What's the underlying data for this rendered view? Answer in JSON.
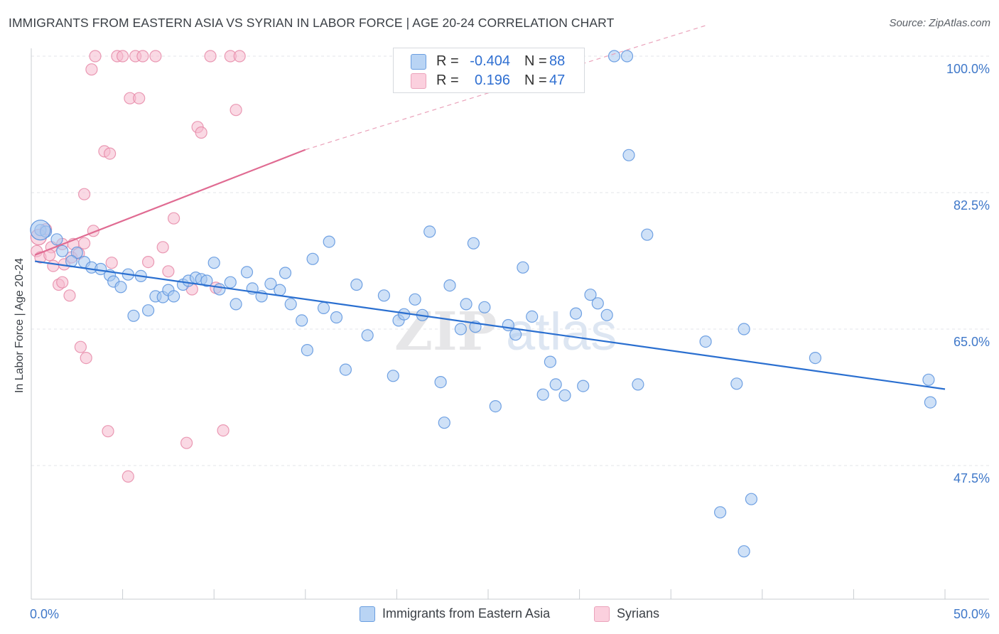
{
  "title": "IMMIGRANTS FROM EASTERN ASIA VS SYRIAN IN LABOR FORCE | AGE 20-24 CORRELATION CHART",
  "source": "Source: ZipAtlas.com",
  "watermark": {
    "zip": "ZIP",
    "atlas": "atlas"
  },
  "legend_stats": [
    {
      "r_label": "R =",
      "r_value": "-0.404",
      "n_label": "N =",
      "n_value": "88"
    },
    {
      "r_label": "R =",
      "r_value": "0.196",
      "n_label": "N =",
      "n_value": "47"
    }
  ],
  "colors": {
    "blue_fill": "#a8c8f0",
    "blue_stroke": "#5b93de",
    "blue_line": "#2a6fd0",
    "pink_fill": "#f6b9cd",
    "pink_stroke": "#e68aa8",
    "pink_line": "#e06b92",
    "tick_label": "#3f78c9",
    "grid": "#e3e6ea"
  },
  "chart_data": {
    "type": "scatter",
    "title": "IMMIGRANTS FROM EASTERN ASIA VS SYRIAN IN LABOR FORCE | AGE 20-24 CORRELATION CHART",
    "xlabel": "",
    "ylabel": "In Labor Force | Age 20-24",
    "xlim": [
      0,
      50
    ],
    "ylim": [
      30,
      101
    ],
    "x_tick_labels": [
      "0.0%",
      "50.0%"
    ],
    "y_ticks": [
      100,
      82.5,
      65,
      47.5
    ],
    "y_tick_labels": [
      "100.0%",
      "82.5%",
      "65.0%",
      "47.5%"
    ],
    "grid": true,
    "legend_position": "bottom",
    "series": [
      {
        "name": "Immigrants from Eastern Asia",
        "color": "#a8c8f0",
        "trend": {
          "x": [
            0.2,
            50
          ],
          "y": [
            73.7,
            57.3
          ],
          "dashed_to": null
        },
        "points": [
          [
            0.5,
            77.7
          ],
          [
            0.8,
            77.5
          ],
          [
            1.4,
            76.5
          ],
          [
            1.7,
            75
          ],
          [
            2.5,
            74.8
          ],
          [
            2.2,
            73.7
          ],
          [
            2.9,
            73.6
          ],
          [
            3.3,
            72.9
          ],
          [
            3.8,
            72.7
          ],
          [
            4.3,
            71.9
          ],
          [
            4.5,
            71.1
          ],
          [
            4.9,
            70.4
          ],
          [
            5.3,
            72
          ],
          [
            5.6,
            66.7
          ],
          [
            6.0,
            71.8
          ],
          [
            6.4,
            67.4
          ],
          [
            6.8,
            69.2
          ],
          [
            7.2,
            69.1
          ],
          [
            7.5,
            70
          ],
          [
            7.8,
            69.2
          ],
          [
            8.3,
            70.7
          ],
          [
            8.6,
            71.2
          ],
          [
            9.0,
            71.6
          ],
          [
            9.3,
            71.4
          ],
          [
            9.6,
            71.2
          ],
          [
            10.0,
            73.5
          ],
          [
            10.3,
            70.1
          ],
          [
            10.9,
            71
          ],
          [
            11.2,
            68.2
          ],
          [
            11.8,
            72.3
          ],
          [
            12.1,
            70.2
          ],
          [
            12.6,
            69.2
          ],
          [
            13.1,
            70.8
          ],
          [
            13.6,
            70
          ],
          [
            13.9,
            72.2
          ],
          [
            14.2,
            68.2
          ],
          [
            14.8,
            66.1
          ],
          [
            15.1,
            62.3
          ],
          [
            15.4,
            74
          ],
          [
            16.0,
            67.7
          ],
          [
            16.3,
            76.2
          ],
          [
            16.7,
            66.5
          ],
          [
            17.2,
            59.8
          ],
          [
            17.8,
            70.7
          ],
          [
            18.4,
            64.2
          ],
          [
            19.3,
            69.3
          ],
          [
            19.8,
            59
          ],
          [
            20.1,
            66.1
          ],
          [
            20.4,
            66.9
          ],
          [
            21.0,
            68.8
          ],
          [
            21.4,
            66.8
          ],
          [
            21.8,
            77.5
          ],
          [
            22.4,
            58.2
          ],
          [
            22.6,
            53
          ],
          [
            22.9,
            70.6
          ],
          [
            23.5,
            65
          ],
          [
            23.8,
            68.2
          ],
          [
            24.2,
            76
          ],
          [
            24.3,
            65.3
          ],
          [
            24.8,
            67.8
          ],
          [
            25.4,
            55.1
          ],
          [
            26.1,
            65.5
          ],
          [
            26.5,
            64.3
          ],
          [
            26.9,
            72.9
          ],
          [
            27.4,
            66.6
          ],
          [
            28.0,
            56.6
          ],
          [
            28.4,
            60.8
          ],
          [
            28.7,
            57.9
          ],
          [
            29.2,
            56.5
          ],
          [
            29.8,
            67
          ],
          [
            30.2,
            57.7
          ],
          [
            30.6,
            69.4
          ],
          [
            31.0,
            68.3
          ],
          [
            31.5,
            66.8
          ],
          [
            31.9,
            100
          ],
          [
            32.6,
            100
          ],
          [
            32.7,
            87.3
          ],
          [
            33.2,
            57.9
          ],
          [
            33.7,
            77.1
          ],
          [
            36.9,
            63.4
          ],
          [
            37.7,
            41.5
          ],
          [
            38.6,
            58
          ],
          [
            39.0,
            36.5
          ],
          [
            39.4,
            43.2
          ],
          [
            42.9,
            61.3
          ],
          [
            49.1,
            58.5
          ],
          [
            49.2,
            55.6
          ],
          [
            39.0,
            65.0
          ]
        ]
      },
      {
        "name": "Syrians",
        "color": "#f6b9cd",
        "trend": {
          "x": [
            0.2,
            15.0
          ],
          "y": [
            74.5,
            88.0
          ],
          "dashed_to": [
            37.0,
            104.0
          ]
        },
        "points": [
          [
            0.3,
            75
          ],
          [
            0.5,
            74.2
          ],
          [
            0.8,
            77.8
          ],
          [
            1.1,
            75.5
          ],
          [
            1.2,
            73.1
          ],
          [
            1.5,
            70.7
          ],
          [
            1.7,
            71
          ],
          [
            1.8,
            73.3
          ],
          [
            2.1,
            69.3
          ],
          [
            2.2,
            74.2
          ],
          [
            2.3,
            75.9
          ],
          [
            2.6,
            74.7
          ],
          [
            2.7,
            62.7
          ],
          [
            3.0,
            61.3
          ],
          [
            3.3,
            98.3
          ],
          [
            3.5,
            100
          ],
          [
            3.4,
            77.6
          ],
          [
            4.0,
            87.8
          ],
          [
            4.2,
            51.9
          ],
          [
            4.4,
            73.5
          ],
          [
            4.7,
            100
          ],
          [
            5.0,
            100
          ],
          [
            5.3,
            46.1
          ],
          [
            5.4,
            94.6
          ],
          [
            5.7,
            100
          ],
          [
            5.9,
            94.6
          ],
          [
            6.1,
            100
          ],
          [
            6.4,
            73.6
          ],
          [
            6.8,
            100
          ],
          [
            7.2,
            75.5
          ],
          [
            7.5,
            72.4
          ],
          [
            7.8,
            79.2
          ],
          [
            8.5,
            50.4
          ],
          [
            8.8,
            70.1
          ],
          [
            9.1,
            90.9
          ],
          [
            9.3,
            90.2
          ],
          [
            9.8,
            100
          ],
          [
            10.1,
            70.3
          ],
          [
            10.5,
            52
          ],
          [
            10.9,
            100
          ],
          [
            11.2,
            93.1
          ],
          [
            11.4,
            100
          ],
          [
            1.7,
            75.9
          ],
          [
            2.9,
            76
          ],
          [
            4.3,
            87.5
          ],
          [
            2.9,
            82.3
          ],
          [
            1.0,
            74.5
          ]
        ]
      }
    ],
    "stats": [
      {
        "series": "Immigrants from Eastern Asia",
        "R": -0.404,
        "N": 88
      },
      {
        "series": "Syrians",
        "R": 0.196,
        "N": 47
      }
    ]
  }
}
